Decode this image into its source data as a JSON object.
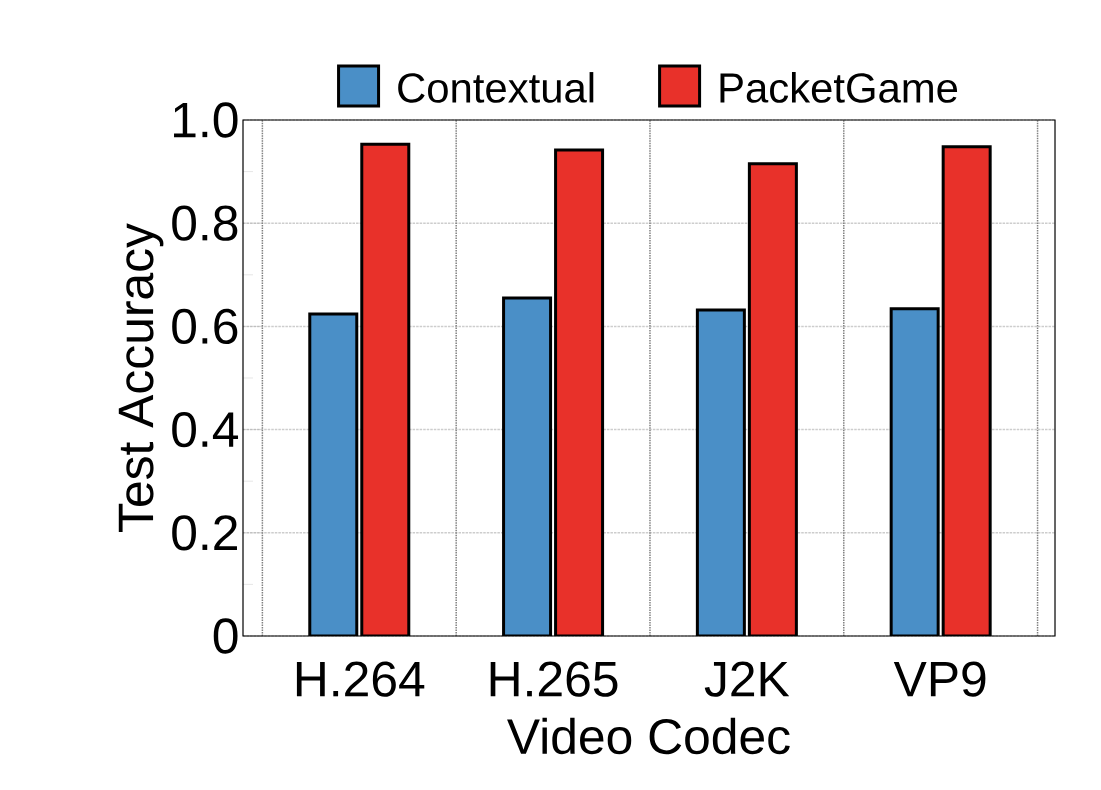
{
  "chart_data": {
    "type": "bar",
    "xlabel": "Video Codec",
    "ylabel": "Test Accuracy",
    "categories": [
      "H.264",
      "H.265",
      "J2K",
      "VP9"
    ],
    "series": [
      {
        "name": "Contextual",
        "color": "#4a8fc7",
        "values": [
          0.624,
          0.655,
          0.632,
          0.634
        ]
      },
      {
        "name": "PacketGame",
        "color": "#e8312a",
        "values": [
          0.953,
          0.942,
          0.915,
          0.948
        ]
      }
    ],
    "ylim": [
      0,
      1
    ],
    "yticks": [
      0,
      0.2,
      0.4,
      0.6,
      0.8,
      {
        "value": 1,
        "label": "1.0"
      }
    ],
    "grid": true,
    "legend": "top"
  }
}
